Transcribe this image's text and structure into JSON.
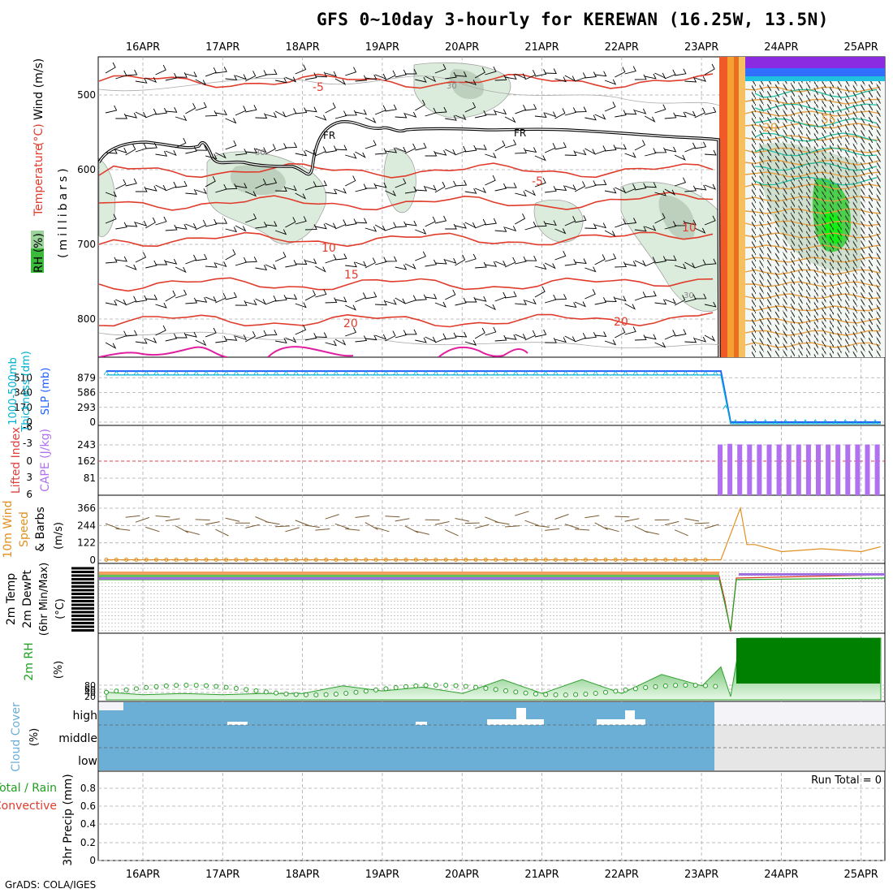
{
  "title": "GFS 0~10day 3-hourly for KEREWAN (16.25W, 13.5N)",
  "footer": "GrADS: COLA/IGES",
  "dates": [
    "16APR",
    "17APR",
    "18APR",
    "19APR",
    "20APR",
    "21APR",
    "22APR",
    "23APR",
    "24APR",
    "25APR"
  ],
  "colors": {
    "temp": "#e03c2c",
    "rh": "#c7dec7",
    "frz": "#000000",
    "thick": "#00b0d0",
    "slp": "#2060ff",
    "cape": "#b070f0",
    "li": "#e04040",
    "wind10": "#e09020",
    "rh2m": "#20a020",
    "cloud": "#6baed6",
    "cloud_na": "#e6e6e6"
  },
  "panels": {
    "upper": {
      "ylabel_parts": [
        "RH (%)",
        "Temperature",
        "(°C)",
        "Wind (m/s)"
      ],
      "yunit": "(millibars)",
      "yticks": [
        "500",
        "600",
        "700",
        "800"
      ],
      "contour_labels": [
        "-5",
        "-5",
        "10",
        "10",
        "15",
        "20",
        "20",
        "FR",
        "FR",
        "30",
        "30",
        "30",
        "55",
        "20"
      ]
    },
    "thickness": {
      "ylabel1": "1000-500mb",
      "ylabel2": "Thickness (dm)",
      "ylabel3": "SLP (mb)",
      "left_ticks": [
        "510",
        "340",
        "170",
        "0"
      ],
      "right_ticks": [
        "879",
        "586",
        "293",
        "0"
      ]
    },
    "cape": {
      "ylabel1": "Lifted Index",
      "ylabel2": "CAPE (J/kg)",
      "left_ticks": [
        "-6",
        "-3",
        "0",
        "3",
        "6"
      ],
      "right_ticks": [
        "243",
        "162",
        "81"
      ]
    },
    "wind10": {
      "ylabel1": "10m Wind",
      "ylabel2": "Speed",
      "ylabel3": "& Barbs",
      "yunit": "(m/s)",
      "ticks": [
        "366",
        "244",
        "122",
        "0"
      ]
    },
    "temp2m": {
      "ylabel1": "2m Temp",
      "ylabel2": "2m DewPt",
      "ylabel3": "(6hr Min/Max)",
      "yunit": "(°C)"
    },
    "rh2m": {
      "ylabel": "2m RH",
      "yunit": "(%)",
      "ticks": [
        "80",
        "60",
        "40",
        "20"
      ]
    },
    "cloud": {
      "ylabel": "Cloud Cover",
      "yunit": "(%)",
      "levels": [
        "high",
        "middle",
        "low"
      ]
    },
    "precip": {
      "ylabel1": "3hr Precip (mm)",
      "ylabel2": "Total / Rain",
      "ylabel3": "Convective",
      "ticks": [
        "0.8",
        "0.6",
        "0.4",
        "0.2",
        "0"
      ],
      "run_total": "Run Total = 0"
    }
  },
  "chart_data": [
    {
      "type": "line",
      "title": "Thickness / SLP",
      "x": [
        "15APR12",
        "16APR00",
        "17APR00",
        "18APR00",
        "19APR00",
        "20APR00",
        "21APR00",
        "22APR00",
        "23APR00",
        "23APR06",
        "23APR12",
        "24APR00",
        "25APR00",
        "25APR06"
      ],
      "series": [
        {
          "name": "SLP (mb)",
          "values": [
            1010,
            1010,
            1010,
            1010,
            1010,
            1010,
            1010,
            1010,
            1010,
            1010,
            0,
            0,
            0,
            0
          ]
        },
        {
          "name": "1000-500mb Thickness (dm)",
          "values": [
            560,
            560,
            560,
            560,
            560,
            560,
            560,
            560,
            560,
            560,
            0,
            0,
            0,
            0
          ]
        }
      ],
      "ylim_slp": [
        0,
        1172
      ],
      "ylim_thickness": [
        0,
        680
      ]
    },
    {
      "type": "bar",
      "title": "CAPE (J/kg)",
      "x": [
        "23APR06",
        "23APR09",
        "23APR12",
        "23APR15",
        "23APR18",
        "23APR21",
        "24APR00",
        "24APR03",
        "24APR06",
        "24APR09",
        "24APR12",
        "24APR15",
        "24APR18",
        "24APR21",
        "25APR00",
        "25APR03",
        "25APR06"
      ],
      "values": [
        245,
        248,
        245,
        245,
        245,
        245,
        245,
        245,
        245,
        245,
        245,
        245,
        245,
        245,
        245,
        245,
        245
      ],
      "ylim": [
        0,
        243
      ]
    },
    {
      "type": "line",
      "title": "10m Wind Speed (m/s)",
      "x": [
        "15APR12",
        "23APR00",
        "23APR06",
        "23APR09",
        "23APR12",
        "23APR15",
        "24APR00",
        "24APR12",
        "25APR00",
        "25APR06"
      ],
      "values": [
        3,
        3,
        3,
        366,
        110,
        110,
        60,
        80,
        60,
        95
      ],
      "ylim": [
        0,
        366
      ]
    },
    {
      "type": "area",
      "title": "2m RH (%)",
      "x": [
        "15APR12",
        "16APR00",
        "16APR12",
        "17APR00",
        "17APR12",
        "18APR00",
        "18APR12",
        "19APR00",
        "19APR12",
        "20APR00",
        "20APR12",
        "21APR00",
        "21APR12",
        "22APR00",
        "22APR12",
        "23APR00",
        "23APR06",
        "23APR09",
        "24APR00",
        "25APR06"
      ],
      "values": [
        12,
        8,
        10,
        8,
        10,
        10,
        22,
        14,
        20,
        10,
        32,
        10,
        32,
        10,
        40,
        22,
        52,
        5,
        100,
        100
      ],
      "ylim": [
        0,
        100
      ]
    },
    {
      "type": "bar",
      "title": "3hr Precip (mm)",
      "values": [
        0
      ],
      "ylim": [
        0,
        1
      ]
    }
  ]
}
